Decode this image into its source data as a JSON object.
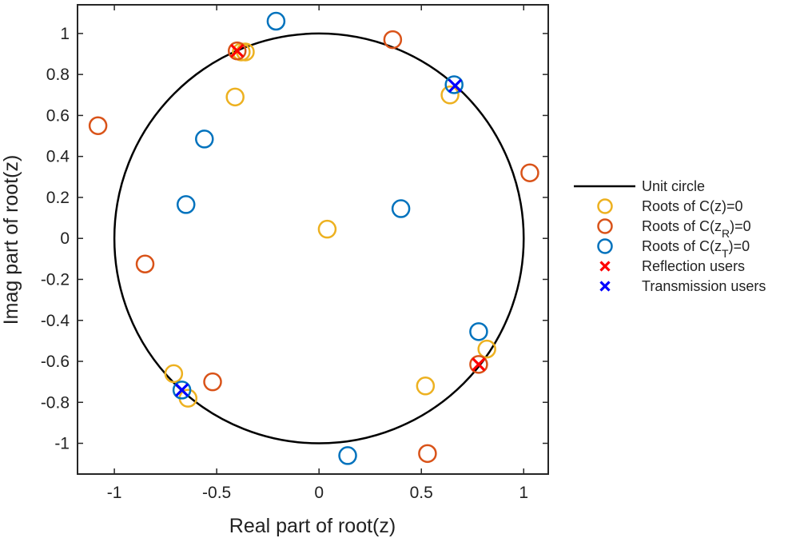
{
  "chart_data": {
    "type": "scatter",
    "title": "",
    "xlabel": "Real part of root(z)",
    "ylabel": "Imag part of root(z)",
    "xlim": [
      -1.18,
      1.12
    ],
    "ylim": [
      -1.15,
      1.14
    ],
    "xticks": [
      -1,
      -0.5,
      0,
      0.5,
      1
    ],
    "xtick_labels": [
      "-1",
      "-0.5",
      "0",
      "0.5",
      "1"
    ],
    "yticks": [
      -1,
      -0.8,
      -0.6,
      -0.4,
      -0.2,
      0,
      0.2,
      0.4,
      0.6,
      0.8,
      1
    ],
    "ytick_labels": [
      "-1",
      "-0.8",
      "-0.6",
      "-0.4",
      "-0.2",
      "0",
      "0.2",
      "0.4",
      "0.6",
      "0.8",
      "1"
    ],
    "grid": false,
    "legend_position": "outside-right",
    "unit_circle": {
      "label": "Unit circle",
      "radius": 1,
      "color": "#000000"
    },
    "series": [
      {
        "name": "Roots of C(z)=0",
        "marker": "circle",
        "color": "#EDB120",
        "points": [
          [
            -0.38,
            0.91
          ],
          [
            -0.36,
            0.91
          ],
          [
            -0.41,
            0.69
          ],
          [
            0.04,
            0.045
          ],
          [
            0.64,
            0.7
          ],
          [
            0.82,
            -0.54
          ],
          [
            0.52,
            -0.72
          ],
          [
            -0.71,
            -0.66
          ],
          [
            -0.64,
            -0.78
          ]
        ]
      },
      {
        "name": "Roots of C(z_R)=0",
        "marker": "circle",
        "color": "#D95319",
        "points": [
          [
            0.36,
            0.97
          ],
          [
            -1.08,
            0.55
          ],
          [
            1.03,
            0.32
          ],
          [
            -0.85,
            -0.125
          ],
          [
            -0.52,
            -0.7
          ],
          [
            0.53,
            -1.05
          ],
          [
            0.78,
            -0.615
          ],
          [
            -0.4,
            0.915
          ]
        ]
      },
      {
        "name": "Roots of C(z_T)=0",
        "marker": "circle",
        "color": "#0072BD",
        "points": [
          [
            -0.21,
            1.06
          ],
          [
            -0.56,
            0.485
          ],
          [
            -0.65,
            0.165
          ],
          [
            0.4,
            0.145
          ],
          [
            0.66,
            0.75
          ],
          [
            0.78,
            -0.455
          ],
          [
            0.14,
            -1.06
          ],
          [
            -0.67,
            -0.74
          ]
        ]
      },
      {
        "name": "Reflection users",
        "marker": "x",
        "color": "#FF0000",
        "points": [
          [
            -0.4,
            0.915
          ],
          [
            0.78,
            -0.615
          ]
        ]
      },
      {
        "name": "Transmission users",
        "marker": "x",
        "color": "#0000FF",
        "points": [
          [
            0.665,
            0.745
          ],
          [
            -0.67,
            -0.74
          ]
        ]
      }
    ]
  }
}
